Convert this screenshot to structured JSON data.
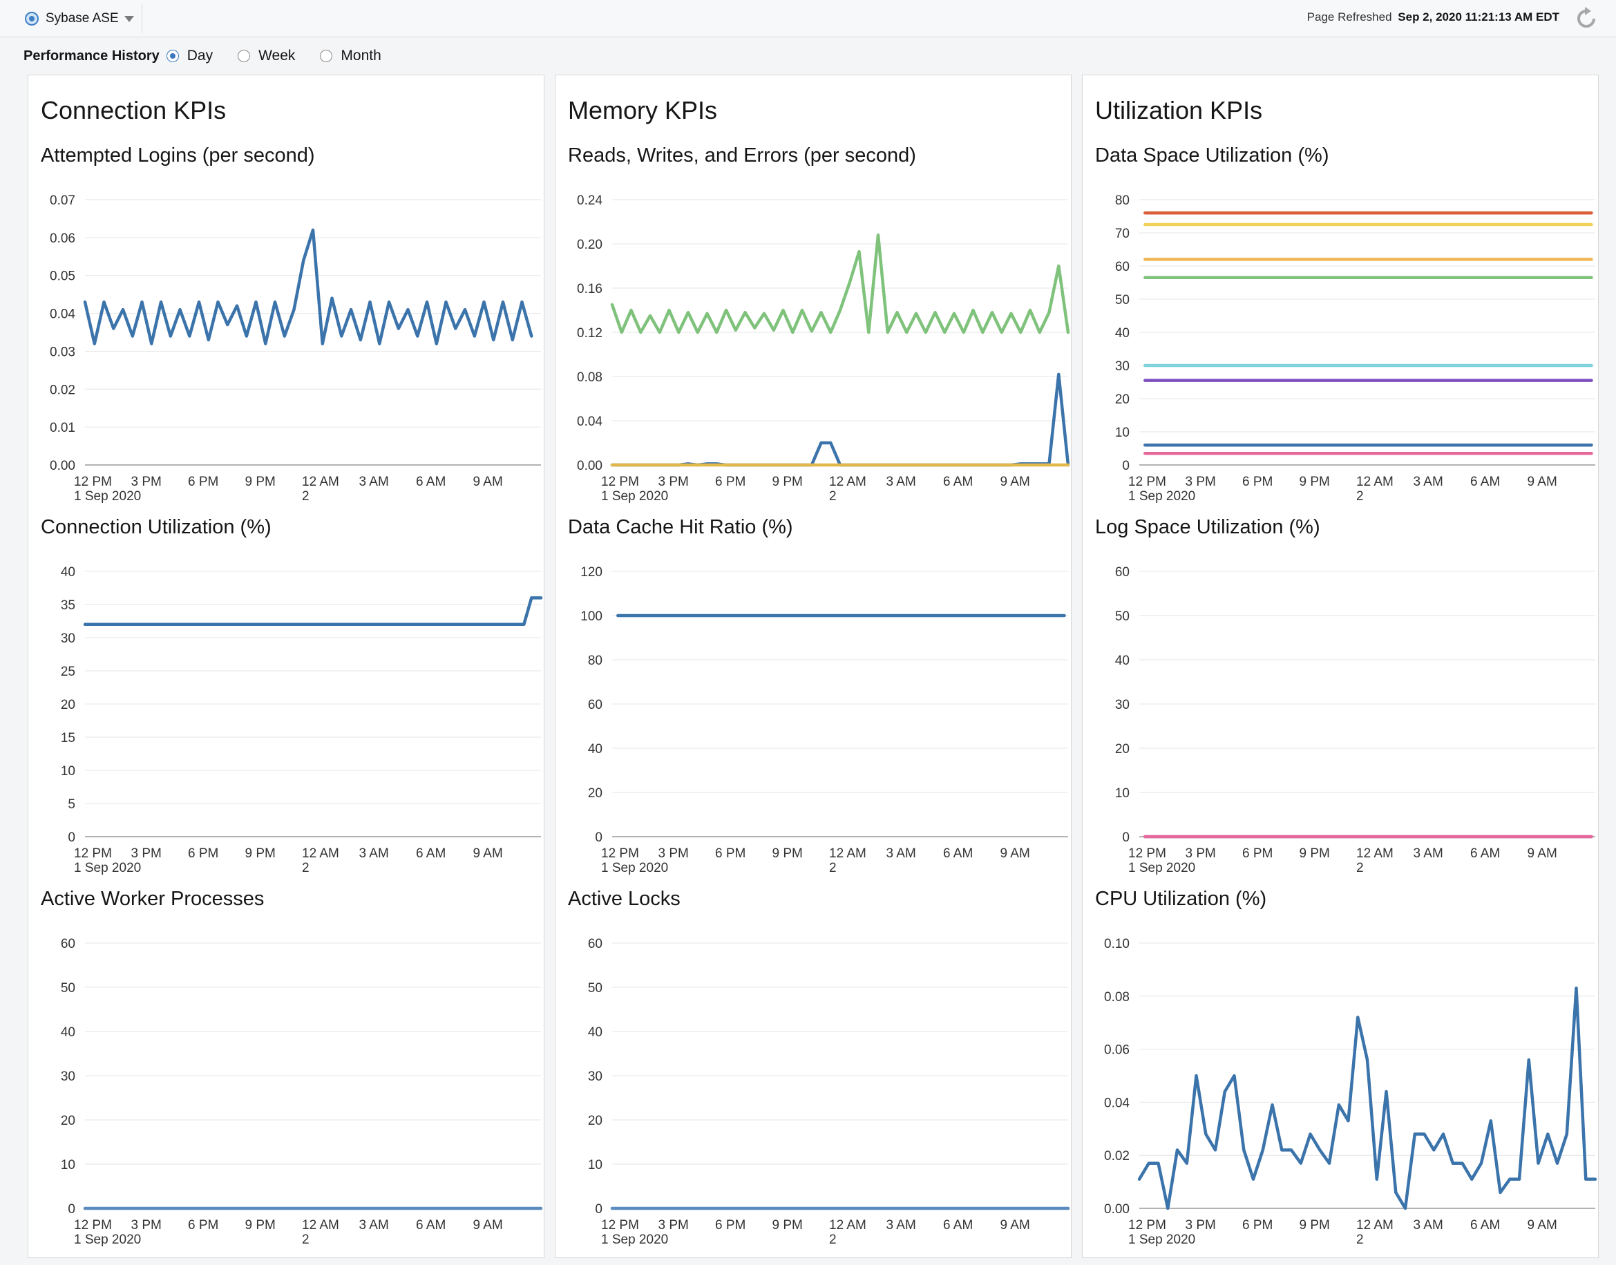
{
  "header": {
    "target_name": "Sybase ASE",
    "page_refreshed_label": "Page Refreshed",
    "page_refreshed_value": "Sep 2, 2020 11:21:13 AM EDT",
    "performance_history_label": "Performance History",
    "period_options": [
      "Day",
      "Week",
      "Month"
    ],
    "selected_period": "Day"
  },
  "x_axis": {
    "ticks": [
      {
        "t": 0,
        "label": "12 PM",
        "sub": "1 Sep 2020"
      },
      {
        "t": 3,
        "label": "3 PM",
        "sub": ""
      },
      {
        "t": 6,
        "label": "6 PM",
        "sub": ""
      },
      {
        "t": 9,
        "label": "9 PM",
        "sub": ""
      },
      {
        "t": 12,
        "label": "12 AM",
        "sub": "2"
      },
      {
        "t": 15,
        "label": "3 AM",
        "sub": ""
      },
      {
        "t": 18,
        "label": "6 AM",
        "sub": ""
      },
      {
        "t": 21,
        "label": "9 AM",
        "sub": ""
      }
    ],
    "range": [
      0,
      24
    ]
  },
  "panels": [
    {
      "title": "Connection KPIs",
      "charts": [
        {
          "title": "Attempted Logins (per second)",
          "chart_data": {
            "type": "line",
            "x": [
              0,
              0.5,
              1,
              1.5,
              2,
              2.5,
              3,
              3.5,
              4,
              4.5,
              5,
              5.5,
              6,
              6.5,
              7,
              7.5,
              8,
              8.5,
              9,
              9.5,
              10,
              10.5,
              11,
              11.5,
              12,
              12.5,
              13,
              13.5,
              14,
              14.5,
              15,
              15.5,
              16,
              16.5,
              17,
              17.5,
              18,
              18.5,
              19,
              19.5,
              20,
              20.5,
              21,
              21.5,
              22,
              22.5,
              23,
              23.5
            ],
            "series": [
              {
                "color": "#3b73ab",
                "values": [
                  0.043,
                  0.032,
                  0.043,
                  0.036,
                  0.041,
                  0.034,
                  0.043,
                  0.032,
                  0.043,
                  0.034,
                  0.041,
                  0.034,
                  0.043,
                  0.033,
                  0.043,
                  0.037,
                  0.042,
                  0.034,
                  0.043,
                  0.032,
                  0.043,
                  0.034,
                  0.041,
                  0.054,
                  0.062,
                  0.032,
                  0.044,
                  0.034,
                  0.041,
                  0.033,
                  0.043,
                  0.032,
                  0.043,
                  0.036,
                  0.041,
                  0.034,
                  0.043,
                  0.032,
                  0.043,
                  0.036,
                  0.041,
                  0.034,
                  0.043,
                  0.033,
                  0.043,
                  0.033,
                  0.043,
                  0.034
                ]
              }
            ],
            "yticks": [
              0.0,
              0.01,
              0.02,
              0.03,
              0.04,
              0.05,
              0.06,
              0.07
            ],
            "ytick_labels": [
              "0.00",
              "0.01",
              "0.02",
              "0.03",
              "0.04",
              "0.05",
              "0.06",
              "0.07"
            ],
            "ylim": [
              0,
              0.07
            ]
          }
        },
        {
          "title": "Connection Utilization (%)",
          "chart_data": {
            "type": "line",
            "x": [
              0,
              23.1,
              23.5,
              24
            ],
            "series": [
              {
                "color": "#3b73ab",
                "values": [
                  32,
                  32,
                  36,
                  36
                ]
              }
            ],
            "yticks": [
              0,
              5,
              10,
              15,
              20,
              25,
              30,
              35,
              40
            ],
            "ytick_labels": [
              "0",
              "5",
              "10",
              "15",
              "20",
              "25",
              "30",
              "35",
              "40"
            ],
            "ylim": [
              0,
              40
            ]
          }
        },
        {
          "title": "Active Worker Processes",
          "chart_data": {
            "type": "line",
            "x": [
              0,
              24
            ],
            "series": [
              {
                "color": "#5c8bbf",
                "values": [
                  0,
                  0
                ]
              }
            ],
            "yticks": [
              0,
              10,
              20,
              30,
              40,
              50,
              60
            ],
            "ytick_labels": [
              "0",
              "10",
              "20",
              "30",
              "40",
              "50",
              "60"
            ],
            "ylim": [
              0,
              60
            ]
          }
        }
      ]
    },
    {
      "title": "Memory KPIs",
      "charts": [
        {
          "title": "Reads, Writes, and Errors (per second)",
          "chart_data": {
            "type": "line",
            "x": [
              0,
              0.5,
              1,
              1.5,
              2,
              2.5,
              3,
              3.5,
              4,
              4.5,
              5,
              5.5,
              6,
              6.5,
              7,
              7.5,
              8,
              8.5,
              9,
              9.5,
              10,
              10.5,
              11,
              11.5,
              12,
              12.5,
              13,
              13.5,
              14,
              14.5,
              15,
              15.5,
              16,
              16.5,
              17,
              17.5,
              18,
              18.5,
              19,
              19.5,
              20,
              20.5,
              21,
              21.5,
              22,
              22.5,
              23,
              23.5,
              24
            ],
            "series": [
              {
                "color": "#7fc27b",
                "values": [
                  0.145,
                  0.12,
                  0.14,
                  0.12,
                  0.135,
                  0.12,
                  0.14,
                  0.12,
                  0.138,
                  0.12,
                  0.137,
                  0.12,
                  0.14,
                  0.122,
                  0.138,
                  0.124,
                  0.137,
                  0.122,
                  0.14,
                  0.12,
                  0.14,
                  0.121,
                  0.138,
                  0.12,
                  0.14,
                  0.165,
                  0.193,
                  0.12,
                  0.208,
                  0.12,
                  0.138,
                  0.12,
                  0.137,
                  0.12,
                  0.138,
                  0.12,
                  0.137,
                  0.12,
                  0.14,
                  0.12,
                  0.138,
                  0.12,
                  0.137,
                  0.12,
                  0.14,
                  0.12,
                  0.138,
                  0.18,
                  0.12
                ]
              },
              {
                "color": "#3b73ab",
                "values": [
                  0,
                  0,
                  0,
                  0,
                  0,
                  0,
                  0,
                  0,
                  0.001,
                  0,
                  0.001,
                  0.001,
                  0,
                  0,
                  0,
                  0,
                  0,
                  0,
                  0,
                  0,
                  0,
                  0,
                  0.02,
                  0.02,
                  0,
                  0,
                  0,
                  0,
                  0,
                  0,
                  0,
                  0,
                  0,
                  0,
                  0,
                  0,
                  0,
                  0,
                  0,
                  0,
                  0,
                  0,
                  0,
                  0.001,
                  0.001,
                  0.001,
                  0.001,
                  0.082,
                  0
                ]
              },
              {
                "color": "#e3b84a",
                "values": [
                  0,
                  0,
                  0,
                  0,
                  0,
                  0,
                  0,
                  0,
                  0,
                  0,
                  0,
                  0,
                  0,
                  0,
                  0,
                  0,
                  0,
                  0,
                  0,
                  0,
                  0,
                  0,
                  0,
                  0,
                  0,
                  0,
                  0,
                  0,
                  0,
                  0,
                  0,
                  0,
                  0,
                  0,
                  0,
                  0,
                  0,
                  0,
                  0,
                  0,
                  0,
                  0,
                  0,
                  0,
                  0,
                  0,
                  0,
                  0,
                  0
                ]
              }
            ],
            "yticks": [
              0,
              0.04,
              0.08,
              0.12,
              0.16,
              0.2,
              0.24
            ],
            "ytick_labels": [
              "0.00",
              "0.04",
              "0.08",
              "0.12",
              "0.16",
              "0.20",
              "0.24"
            ],
            "ylim": [
              0,
              0.24
            ]
          }
        },
        {
          "title": "Data Cache Hit Ratio (%)",
          "chart_data": {
            "type": "line",
            "x": [
              0.3,
              23.8
            ],
            "series": [
              {
                "color": "#3b73ab",
                "values": [
                  100,
                  100
                ]
              }
            ],
            "yticks": [
              0,
              20,
              40,
              60,
              80,
              100,
              120
            ],
            "ytick_labels": [
              "0",
              "20",
              "40",
              "60",
              "80",
              "100",
              "120"
            ],
            "ylim": [
              0,
              120
            ]
          }
        },
        {
          "title": "Active Locks",
          "chart_data": {
            "type": "line",
            "x": [
              0,
              24
            ],
            "series": [
              {
                "color": "#5c8bbf",
                "values": [
                  0,
                  0
                ]
              }
            ],
            "yticks": [
              0,
              10,
              20,
              30,
              40,
              50,
              60
            ],
            "ytick_labels": [
              "0",
              "10",
              "20",
              "30",
              "40",
              "50",
              "60"
            ],
            "ylim": [
              0,
              60
            ]
          }
        }
      ]
    },
    {
      "title": "Utilization KPIs",
      "charts": [
        {
          "title": "Data Space Utilization (%)",
          "chart_data": {
            "type": "line",
            "x": [
              0.3,
              23.8
            ],
            "series": [
              {
                "color": "#d9603b",
                "values": [
                  76,
                  76
                ]
              },
              {
                "color": "#f2d05a",
                "values": [
                  72.5,
                  72.5
                ]
              },
              {
                "color": "#f0b653",
                "values": [
                  62,
                  62
                ]
              },
              {
                "color": "#7fc27b",
                "values": [
                  56.5,
                  56.5
                ]
              },
              {
                "color": "#7fd3dc",
                "values": [
                  30,
                  30
                ]
              },
              {
                "color": "#7f4fbf",
                "values": [
                  25.5,
                  25.5
                ]
              },
              {
                "color": "#3b73ab",
                "values": [
                  6,
                  6
                ]
              },
              {
                "color": "#e8679b",
                "values": [
                  3.5,
                  3.5
                ]
              }
            ],
            "yticks": [
              0,
              10,
              20,
              30,
              40,
              50,
              60,
              70,
              80
            ],
            "ytick_labels": [
              "0",
              "10",
              "20",
              "30",
              "40",
              "50",
              "60",
              "70",
              "80"
            ],
            "ylim": [
              0,
              80
            ]
          }
        },
        {
          "title": "Log Space Utilization (%)",
          "chart_data": {
            "type": "line",
            "x": [
              0.3,
              23.8
            ],
            "series": [
              {
                "color": "#7f7ab5",
                "values": [
                  0,
                  0
                ]
              },
              {
                "color": "#e8679b",
                "values": [
                  0,
                  0
                ]
              }
            ],
            "yticks": [
              0,
              10,
              20,
              30,
              40,
              50,
              60
            ],
            "ytick_labels": [
              "0",
              "10",
              "20",
              "30",
              "40",
              "50",
              "60"
            ],
            "ylim": [
              0,
              60
            ]
          }
        },
        {
          "title": "CPU Utilization (%)",
          "chart_data": {
            "type": "line",
            "x": [
              0,
              0.5,
              1,
              1.5,
              2,
              2.5,
              3,
              3.5,
              4,
              4.5,
              5,
              5.5,
              6,
              6.5,
              7,
              7.5,
              8,
              8.5,
              9,
              9.5,
              10,
              10.5,
              11,
              11.5,
              12,
              12.5,
              13,
              13.5,
              14,
              14.5,
              15,
              15.5,
              16,
              16.5,
              17,
              17.5,
              18,
              18.5,
              19,
              19.5,
              20,
              20.5,
              21,
              21.5,
              22,
              22.5,
              23,
              23.5,
              24
            ],
            "series": [
              {
                "color": "#3b73ab",
                "values": [
                  0.011,
                  0.017,
                  0.017,
                  0,
                  0.022,
                  0.017,
                  0.05,
                  0.028,
                  0.022,
                  0.044,
                  0.05,
                  0.022,
                  0.011,
                  0.022,
                  0.039,
                  0.022,
                  0.022,
                  0.017,
                  0.028,
                  0.022,
                  0.017,
                  0.039,
                  0.033,
                  0.072,
                  0.056,
                  0.011,
                  0.044,
                  0.006,
                  0,
                  0.028,
                  0.028,
                  0.022,
                  0.028,
                  0.017,
                  0.017,
                  0.011,
                  0.017,
                  0.033,
                  0.006,
                  0.011,
                  0.011,
                  0.056,
                  0.017,
                  0.028,
                  0.017,
                  0.028,
                  0.083,
                  0.011,
                  0.011
                ]
              }
            ],
            "yticks": [
              0,
              0.02,
              0.04,
              0.06,
              0.08,
              0.1
            ],
            "ytick_labels": [
              "0.00",
              "0.02",
              "0.04",
              "0.06",
              "0.08",
              "0.10"
            ],
            "ylim": [
              0,
              0.1
            ]
          }
        }
      ]
    }
  ]
}
